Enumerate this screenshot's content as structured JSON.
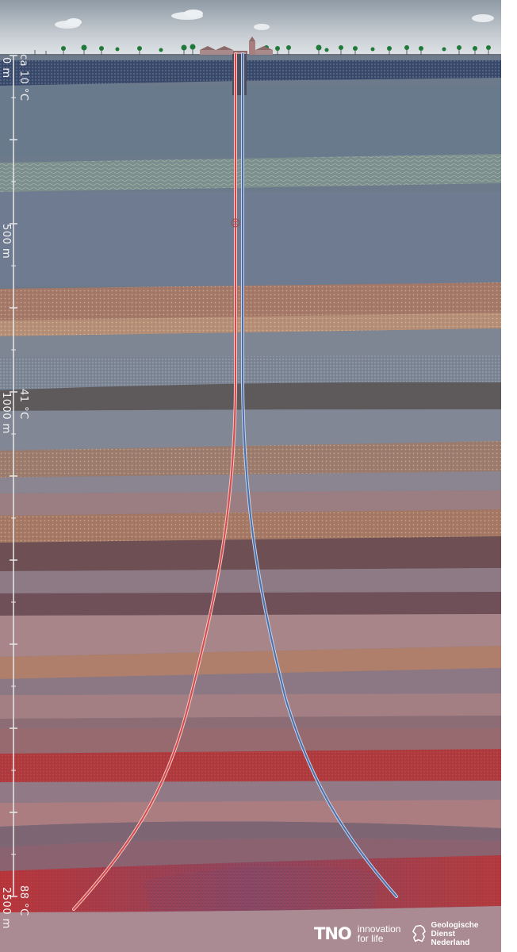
{
  "depth_labels": [
    {
      "id": "surface",
      "text": "0 m"
    },
    {
      "id": "d500",
      "text": "500 m"
    },
    {
      "id": "d1000",
      "text": "1000 m"
    },
    {
      "id": "d2500",
      "text": "2500 m"
    }
  ],
  "temperature_labels": [
    {
      "id": "t-surface",
      "text": "ca 10 °C"
    },
    {
      "id": "t-1000",
      "text": "41 °C"
    },
    {
      "id": "t-2500",
      "text": "88 °C"
    }
  ],
  "logos": {
    "tno_word": "TNO",
    "tno_tagline_1": "innovation",
    "tno_tagline_2": "for life",
    "gdn_line_1": "Geologische Dienst",
    "gdn_line_2": "Nederland"
  },
  "colors": {
    "production_well": "#d24a4a",
    "injection_well": "#4d6fa8",
    "sky": "#c6ccd2",
    "ground": "#aa8a93"
  }
}
